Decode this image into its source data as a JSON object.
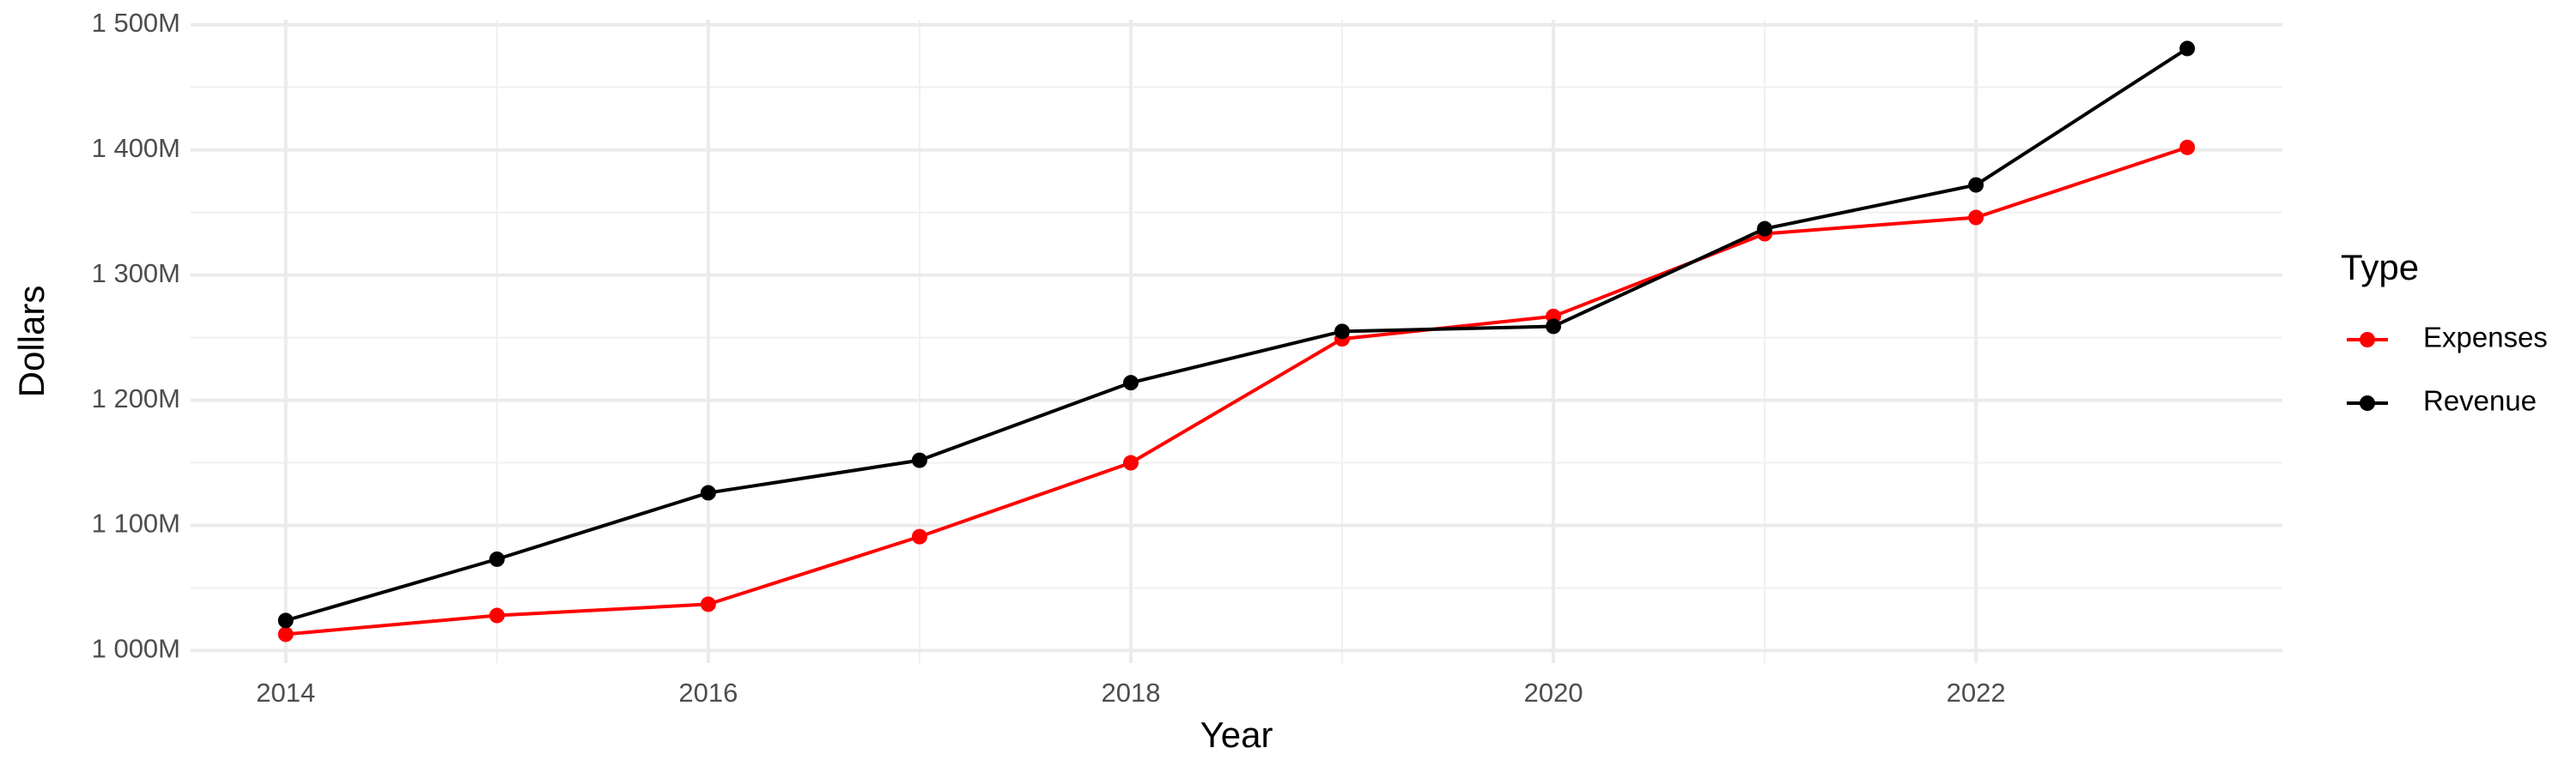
{
  "chart_data": {
    "type": "line",
    "xlabel": "Year",
    "ylabel": "Dollars",
    "legend_title": "Type",
    "x": [
      2014,
      2015,
      2016,
      2017,
      2018,
      2019,
      2020,
      2021,
      2022,
      2023
    ],
    "series": [
      {
        "name": "Expenses",
        "color": "#ff0000",
        "values": [
          1013,
          1028,
          1037,
          1091,
          1150,
          1249,
          1267,
          1333,
          1346,
          1402
        ]
      },
      {
        "name": "Revenue",
        "color": "#000000",
        "values": [
          1024,
          1073,
          1126,
          1152,
          1214,
          1255,
          1259,
          1337,
          1372,
          1481
        ]
      }
    ],
    "xlim": [
      2013.55,
      2023.45
    ],
    "xticks": [
      2014,
      2016,
      2018,
      2020,
      2022
    ],
    "ylim": [
      990,
      1504
    ],
    "yticks": [
      {
        "value": 1000,
        "label": "1 000M"
      },
      {
        "value": 1100,
        "label": "1 100M"
      },
      {
        "value": 1200,
        "label": "1 200M"
      },
      {
        "value": 1300,
        "label": "1 300M"
      },
      {
        "value": 1400,
        "label": "1 400M"
      },
      {
        "value": 1500,
        "label": "1 500M"
      }
    ],
    "grid": true,
    "legend_position": "right"
  }
}
